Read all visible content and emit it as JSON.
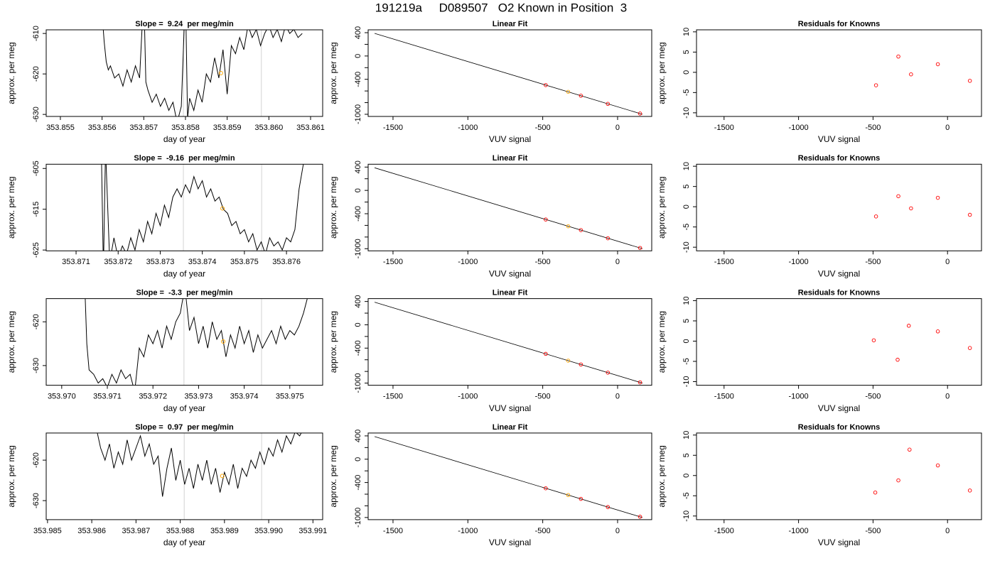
{
  "title": "191219a     D089507   O2 Known in Position  3",
  "chart_data": [
    {
      "type": "line",
      "title": "Slope =  9.24  per meg/min",
      "xlabel": "day of year",
      "ylabel": "approx. per meg",
      "color": "#000000",
      "x": [
        353.856,
        353.85605,
        353.8561,
        353.85615,
        353.8562,
        353.8563,
        353.8564,
        353.8565,
        353.8566,
        353.8567,
        353.8568,
        353.8569,
        353.857,
        353.85705,
        353.8571,
        353.8572,
        353.8573,
        353.8574,
        353.8575,
        353.8576,
        353.8577,
        353.8578,
        353.8579,
        353.858,
        353.85805,
        353.8581,
        353.8582,
        353.8583,
        353.8584,
        353.8585,
        353.8586,
        353.8587,
        353.8588,
        353.8589,
        353.859,
        353.8591,
        353.8592,
        353.8593,
        353.8594,
        353.8595,
        353.8596,
        353.8597,
        353.8598,
        353.8599,
        353.86,
        353.8601,
        353.8602,
        353.8603,
        353.8604,
        353.8605,
        353.8606,
        353.8607,
        353.8608
      ],
      "values": [
        -605,
        -612,
        -617,
        -619,
        -618,
        -621,
        -620,
        -623,
        -619,
        -622,
        -618,
        -621,
        -600,
        -622,
        -624,
        -627,
        -625,
        -628,
        -626,
        -629,
        -627,
        -632,
        -628,
        -600,
        -631,
        -626,
        -629,
        -624,
        -627,
        -620,
        -622,
        -616,
        -621,
        -614,
        -625,
        -613,
        -615,
        -611,
        -614,
        -608,
        -611,
        -609,
        -613,
        -610,
        -608,
        -611,
        -609,
        -612,
        -608,
        -610,
        -609,
        -611,
        -610
      ],
      "vlines": [
        353.85795,
        353.85982
      ],
      "vline_color": "#d3d3d3",
      "highlight": {
        "x": 353.85885,
        "y": -619.8,
        "color": "#ffa500"
      },
      "xlim": [
        353.85466,
        353.86129
      ],
      "ylim": [
        -630.5,
        -609.1
      ],
      "xticks": [
        353.855,
        353.856,
        353.857,
        353.858,
        353.859,
        {
          "value": 353.86,
          "label": "353.860"
        },
        353.861
      ],
      "yticks": [
        -610,
        -620,
        -630
      ]
    },
    {
      "type": "scatter",
      "title": "Linear Fit",
      "xlabel": "VUV signal",
      "ylabel": "approx. per meg",
      "x": [
        -480,
        -330,
        -245,
        -65,
        150
      ],
      "values": [
        -499,
        -615,
        -681,
        -821,
        -987
      ],
      "colors": [
        "#ff0000",
        "#ffa500",
        "#ff0000",
        "#ff0000",
        "#ff0000"
      ],
      "fit_line": {
        "x": [
          -1623,
          166
        ],
        "values": [
          388,
          -1000
        ],
        "color": "#000000"
      },
      "xlim": [
        -1666,
        228
      ],
      "ylim": [
        -1037,
        449
      ],
      "xticks": [
        -1500,
        -1000,
        -500,
        0
      ],
      "yticks": [
        400,
        0,
        -400,
        -1000
      ],
      "yminor_ticks": [
        200,
        -200,
        -600,
        -800
      ]
    },
    {
      "type": "scatter",
      "title": "Residuals for Knowns",
      "xlabel": "VUV signal",
      "ylabel": "approx. per meg",
      "x": [
        -480,
        -330,
        -245,
        -65,
        150
      ],
      "values": [
        -3.2,
        3.9,
        -0.5,
        2.0,
        -2.1
      ],
      "colors": [
        "#ff0000",
        "#ff0000",
        "#ff0000",
        "#ff0000",
        "#ff0000"
      ],
      "xlim": [
        -1685,
        228
      ],
      "ylim": [
        -10.9,
        10.5
      ],
      "xticks": [
        -1500,
        -1000,
        -500,
        0
      ],
      "yticks": [
        -10,
        -5,
        0,
        5,
        10
      ]
    },
    {
      "type": "line",
      "title": "Slope =  -9.16  per meg/min",
      "xlabel": "day of year",
      "ylabel": "approx. per meg",
      "color": "#000000",
      "x": [
        353.8716,
        353.87165,
        353.8717,
        353.8718,
        353.8719,
        353.872,
        353.8721,
        353.8722,
        353.8723,
        353.8724,
        353.8725,
        353.8726,
        353.8727,
        353.8728,
        353.8729,
        353.873,
        353.8731,
        353.8732,
        353.8733,
        353.8734,
        353.8735,
        353.8736,
        353.8737,
        353.8738,
        353.8739,
        353.874,
        353.8741,
        353.8742,
        353.8743,
        353.8744,
        353.8745,
        353.8746,
        353.8747,
        353.8748,
        353.8749,
        353.875,
        353.8751,
        353.8752,
        353.8753,
        353.8754,
        353.8755,
        353.8756,
        353.8757,
        353.8758,
        353.8759,
        353.876,
        353.8761,
        353.8762,
        353.8763,
        353.8764
      ],
      "values": [
        -600,
        -630,
        -600,
        -628,
        -622,
        -627,
        -624,
        -626,
        -622,
        -625,
        -620,
        -623,
        -618,
        -621,
        -616,
        -619,
        -614,
        -617,
        -612,
        -610,
        -612,
        -609,
        -611,
        -607,
        -610,
        -608,
        -612,
        -610,
        -613,
        -612,
        -615,
        -616,
        -619,
        -618,
        -621,
        -620,
        -623,
        -621,
        -625,
        -623,
        -626,
        -622,
        -624,
        -623,
        -625,
        -622,
        -623,
        -620,
        -610,
        -604
      ],
      "vlines": [
        353.87355,
        353.87541
      ],
      "vline_color": "#d3d3d3",
      "highlight": {
        "x": 353.87448,
        "y": -614.8,
        "color": "#ffa500"
      },
      "xlim": [
        353.87029,
        353.87686
      ],
      "ylim": [
        -625.2,
        -603.96
      ],
      "xticks": [
        353.871,
        353.872,
        353.873,
        353.874,
        353.875,
        353.876
      ],
      "yticks": [
        -605,
        -615,
        -625
      ]
    },
    {
      "type": "scatter",
      "title": "Linear Fit",
      "xlabel": "VUV signal",
      "ylabel": "approx. per meg",
      "x": [
        -480,
        -330,
        -245,
        -65,
        150
      ],
      "values": [
        -499,
        -615,
        -681,
        -821,
        -987
      ],
      "colors": [
        "#ff0000",
        "#ffa500",
        "#ff0000",
        "#ff0000",
        "#ff0000"
      ],
      "fit_line": {
        "x": [
          -1623,
          166
        ],
        "values": [
          388,
          -1000
        ],
        "color": "#000000"
      },
      "xlim": [
        -1666,
        228
      ],
      "ylim": [
        -1037,
        449
      ],
      "xticks": [
        -1500,
        -1000,
        -500,
        0
      ],
      "yticks": [
        400,
        0,
        -400,
        -1000
      ],
      "yminor_ticks": [
        200,
        -200,
        -600,
        -800
      ]
    },
    {
      "type": "scatter",
      "title": "Residuals for Knowns",
      "xlabel": "VUV signal",
      "ylabel": "approx. per meg",
      "x": [
        -480,
        -330,
        -245,
        -65,
        150
      ],
      "values": [
        -2.4,
        2.6,
        -0.4,
        2.2,
        -2.0
      ],
      "colors": [
        "#ff0000",
        "#ff0000",
        "#ff0000",
        "#ff0000",
        "#ff0000"
      ],
      "xlim": [
        -1685,
        228
      ],
      "ylim": [
        -10.9,
        10.5
      ],
      "xticks": [
        -1500,
        -1000,
        -500,
        0
      ],
      "yticks": [
        -10,
        -5,
        0,
        5,
        10
      ]
    },
    {
      "type": "line",
      "title": "Slope =  -3.3  per meg/min",
      "xlabel": "day of year",
      "ylabel": "approx. per meg",
      "color": "#000000",
      "x": [
        353.9705,
        353.97055,
        353.9706,
        353.9707,
        353.9708,
        353.9709,
        353.971,
        353.9711,
        353.9712,
        353.9713,
        353.9714,
        353.9715,
        353.9716,
        353.9717,
        353.9718,
        353.9719,
        353.972,
        353.9721,
        353.9722,
        353.9723,
        353.9724,
        353.9725,
        353.9726,
        353.9727,
        353.9728,
        353.9729,
        353.973,
        353.9731,
        353.9732,
        353.9733,
        353.9734,
        353.9735,
        353.9736,
        353.9737,
        353.9738,
        353.9739,
        353.974,
        353.9741,
        353.9742,
        353.9743,
        353.9744,
        353.9745,
        353.9746,
        353.9747,
        353.9748,
        353.9749,
        353.975,
        353.9751,
        353.9752,
        353.9753,
        353.9754
      ],
      "values": [
        -610,
        -625,
        -631,
        -632,
        -634,
        -633,
        -635,
        -632,
        -634,
        -631,
        -633,
        -632,
        -636,
        -626,
        -628,
        -623,
        -625,
        -622,
        -626,
        -621,
        -624,
        -620,
        -618,
        -612,
        -622,
        -619,
        -625,
        -621,
        -626,
        -620,
        -624,
        -622,
        -628,
        -623,
        -626,
        -621,
        -625,
        -622,
        -627,
        -623,
        -626,
        -624,
        -622,
        -625,
        -621,
        -624,
        -622,
        -623,
        -621,
        -618,
        -614
      ],
      "vlines": [
        353.97268,
        353.97438
      ],
      "vline_color": "#d3d3d3",
      "highlight": {
        "x": 353.97354,
        "y": -624.5,
        "color": "#ffa500"
      },
      "xlim": [
        353.96966,
        353.97572
      ],
      "ylim": [
        -634.5,
        -614.7
      ],
      "xticks": [
        {
          "value": 353.97,
          "label": "353.970"
        },
        353.971,
        353.972,
        353.973,
        353.974,
        353.975
      ],
      "yticks": [
        -620,
        -630
      ]
    },
    {
      "type": "scatter",
      "title": "Linear Fit",
      "xlabel": "VUV signal",
      "ylabel": "approx. per meg",
      "x": [
        -480,
        -330,
        -245,
        -65,
        150
      ],
      "values": [
        -499,
        -615,
        -681,
        -821,
        -987
      ],
      "colors": [
        "#ff0000",
        "#ffa500",
        "#ff0000",
        "#ff0000",
        "#ff0000"
      ],
      "fit_line": {
        "x": [
          -1623,
          166
        ],
        "values": [
          388,
          -1000
        ],
        "color": "#000000"
      },
      "xlim": [
        -1666,
        228
      ],
      "ylim": [
        -1037,
        449
      ],
      "xticks": [
        -1500,
        -1000,
        -500,
        0
      ],
      "yticks": [
        400,
        0,
        -400,
        -1000
      ],
      "yminor_ticks": [
        200,
        -200,
        -600,
        -800
      ]
    },
    {
      "type": "scatter",
      "title": "Residuals for Knowns",
      "xlabel": "VUV signal",
      "ylabel": "approx. per meg",
      "x": [
        -495,
        -335,
        -260,
        -65,
        150
      ],
      "values": [
        0.2,
        -4.6,
        3.8,
        2.4,
        -1.7
      ],
      "colors": [
        "#ff0000",
        "#ff0000",
        "#ff0000",
        "#ff0000",
        "#ff0000"
      ],
      "xlim": [
        -1685,
        228
      ],
      "ylim": [
        -10.9,
        10.5
      ],
      "xticks": [
        -1500,
        -1000,
        -500,
        0
      ],
      "yticks": [
        -10,
        -5,
        0,
        5,
        10
      ]
    },
    {
      "type": "line",
      "title": "Slope =  0.97  per meg/min",
      "xlabel": "day of year",
      "ylabel": "approx. per meg",
      "color": "#000000",
      "x": [
        353.9861,
        353.9862,
        353.9863,
        353.9864,
        353.9865,
        353.9866,
        353.9867,
        353.9868,
        353.9869,
        353.987,
        353.9871,
        353.9872,
        353.9873,
        353.9874,
        353.9875,
        353.9876,
        353.9877,
        353.9878,
        353.9879,
        353.988,
        353.9881,
        353.9882,
        353.9883,
        353.9884,
        353.9885,
        353.9886,
        353.9887,
        353.9888,
        353.9889,
        353.989,
        353.9891,
        353.9892,
        353.9893,
        353.9894,
        353.9895,
        353.9896,
        353.9897,
        353.9898,
        353.9899,
        353.99,
        353.9901,
        353.9902,
        353.9903,
        353.9904,
        353.9905,
        353.9906,
        353.9907,
        353.9908
      ],
      "values": [
        -612,
        -617,
        -620,
        -616,
        -622,
        -618,
        -621,
        -615,
        -620,
        -617,
        -614,
        -619,
        -616,
        -621,
        -619,
        -629,
        -622,
        -617,
        -625,
        -620,
        -626,
        -622,
        -627,
        -621,
        -625,
        -620,
        -626,
        -622,
        -628,
        -623,
        -626,
        -621,
        -627,
        -622,
        -624,
        -620,
        -622,
        -618,
        -621,
        -617,
        -619,
        -615,
        -618,
        -614,
        -616,
        -613,
        -614,
        -612
      ],
      "vlines": [
        353.98809,
        353.98984
      ],
      "vline_color": "#d3d3d3",
      "highlight": {
        "x": 353.98895,
        "y": -623.9,
        "color": "#ffa500"
      },
      "xlim": [
        353.98497,
        353.99122
      ],
      "ylim": [
        -634.7,
        -613.3
      ],
      "xticks": [
        353.985,
        353.986,
        353.987,
        353.988,
        353.989,
        {
          "value": 353.99,
          "label": "353.990"
        },
        353.991
      ],
      "yticks": [
        -620,
        -630
      ]
    },
    {
      "type": "scatter",
      "title": "Linear Fit",
      "xlabel": "VUV signal",
      "ylabel": "approx. per meg",
      "x": [
        -480,
        -330,
        -245,
        -65,
        150
      ],
      "values": [
        -499,
        -615,
        -681,
        -821,
        -987
      ],
      "colors": [
        "#ff0000",
        "#ffa500",
        "#ff0000",
        "#ff0000",
        "#ff0000"
      ],
      "fit_line": {
        "x": [
          -1623,
          166
        ],
        "values": [
          388,
          -1000
        ],
        "color": "#000000"
      },
      "xlim": [
        -1666,
        228
      ],
      "ylim": [
        -1037,
        449
      ],
      "xticks": [
        -1500,
        -1000,
        -500,
        0
      ],
      "yticks": [
        400,
        0,
        -400,
        -1000
      ],
      "yminor_ticks": [
        200,
        -200,
        -600,
        -800
      ]
    },
    {
      "type": "scatter",
      "title": "Residuals for Knowns",
      "xlabel": "VUV signal",
      "ylabel": "approx. per meg",
      "x": [
        -485,
        -330,
        -255,
        -65,
        150
      ],
      "values": [
        -4.2,
        -1.2,
        6.4,
        2.5,
        -3.7
      ],
      "colors": [
        "#ff0000",
        "#ff0000",
        "#ff0000",
        "#ff0000",
        "#ff0000"
      ],
      "xlim": [
        -1685,
        228
      ],
      "ylim": [
        -10.9,
        10.5
      ],
      "xticks": [
        -1500,
        -1000,
        -500,
        0
      ],
      "yticks": [
        -10,
        -5,
        0,
        5,
        10
      ]
    }
  ]
}
